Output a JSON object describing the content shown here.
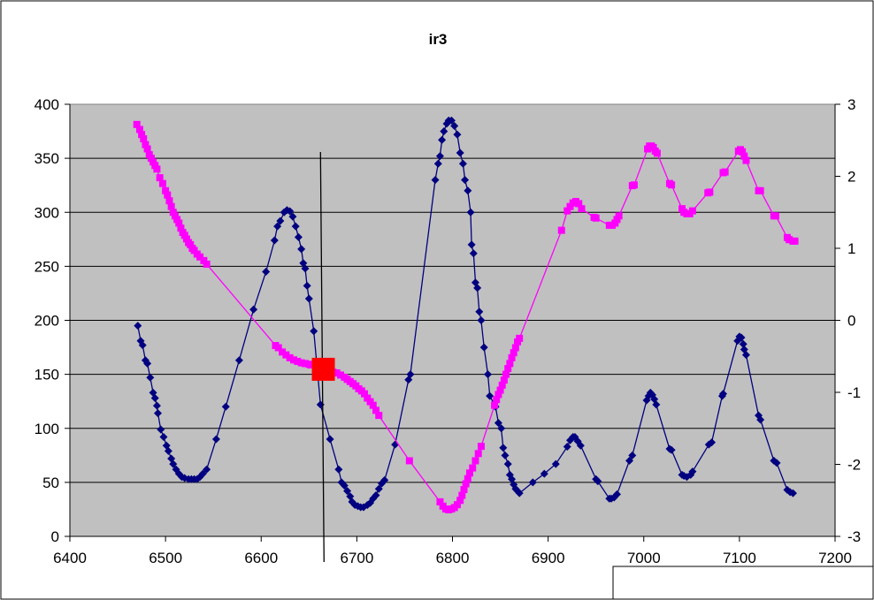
{
  "chart_data": {
    "type": "scatter",
    "title": "ir3",
    "xlabel": "",
    "ylabel": "",
    "xlim": [
      6400,
      7200
    ],
    "ylim": [
      0,
      400
    ],
    "y2lim": [
      -3,
      3
    ],
    "x_ticks": [
      "6400",
      "6500",
      "6600",
      "6700",
      "6800",
      "6900",
      "7000",
      "7100",
      "7200"
    ],
    "y_ticks": [
      "0",
      "50",
      "100",
      "150",
      "200",
      "250",
      "300",
      "350",
      "400"
    ],
    "y2_ticks": [
      "-3",
      "-2",
      "-1",
      "0",
      "1",
      "2",
      "3"
    ],
    "grid": true,
    "plot_background": "#c0c0c0",
    "series": [
      {
        "color": "#000080",
        "marker": "diamond",
        "axis": "left",
        "points": [
          [
            6471,
            195
          ],
          [
            6474,
            181
          ],
          [
            6476,
            177
          ],
          [
            6479,
            163
          ],
          [
            6481,
            160
          ],
          [
            6484,
            147
          ],
          [
            6487,
            133
          ],
          [
            6489,
            128
          ],
          [
            6491,
            121
          ],
          [
            6492,
            114
          ],
          [
            6495,
            99
          ],
          [
            6498,
            92
          ],
          [
            6501,
            84
          ],
          [
            6503,
            79
          ],
          [
            6506,
            72
          ],
          [
            6508,
            67
          ],
          [
            6511,
            62
          ],
          [
            6514,
            58
          ],
          [
            6517,
            55
          ],
          [
            6520,
            54
          ],
          [
            6524,
            53
          ],
          [
            6527,
            53
          ],
          [
            6530,
            53
          ],
          [
            6533,
            53
          ],
          [
            6536,
            55
          ],
          [
            6539,
            58
          ],
          [
            6543,
            62
          ],
          [
            6553,
            90
          ],
          [
            6563,
            120
          ],
          [
            6577,
            163
          ],
          [
            6592,
            210
          ],
          [
            6605,
            245
          ],
          [
            6614,
            274
          ],
          [
            6617,
            287
          ],
          [
            6620,
            292
          ],
          [
            6624,
            300
          ],
          [
            6627,
            302
          ],
          [
            6630,
            301
          ],
          [
            6633,
            296
          ],
          [
            6636,
            287
          ],
          [
            6639,
            277
          ],
          [
            6642,
            266
          ],
          [
            6644,
            253
          ],
          [
            6646,
            248
          ],
          [
            6648,
            232
          ],
          [
            6650,
            220
          ],
          [
            6655,
            190
          ],
          [
            6662,
            122
          ],
          [
            6672,
            90
          ],
          [
            6681,
            62
          ],
          [
            6684,
            50
          ],
          [
            6687,
            47
          ],
          [
            6690,
            42
          ],
          [
            6693,
            37
          ],
          [
            6695,
            32
          ],
          [
            6698,
            29
          ],
          [
            6701,
            28
          ],
          [
            6704,
            27
          ],
          [
            6707,
            27
          ],
          [
            6711,
            29
          ],
          [
            6714,
            31
          ],
          [
            6717,
            35
          ],
          [
            6720,
            38
          ],
          [
            6723,
            44
          ],
          [
            6726,
            49
          ],
          [
            6729,
            52
          ],
          [
            6740,
            85
          ],
          [
            6754,
            145
          ],
          [
            6756,
            150
          ],
          [
            6782,
            330
          ],
          [
            6785,
            345
          ],
          [
            6787,
            352
          ],
          [
            6789,
            367
          ],
          [
            6791,
            375
          ],
          [
            6794,
            382
          ],
          [
            6796,
            385
          ],
          [
            6799,
            385
          ],
          [
            6802,
            380
          ],
          [
            6805,
            372
          ],
          [
            6808,
            355
          ],
          [
            6811,
            345
          ],
          [
            6813,
            330
          ],
          [
            6816,
            320
          ],
          [
            6819,
            300
          ],
          [
            6820,
            270
          ],
          [
            6822,
            262
          ],
          [
            6824,
            235
          ],
          [
            6826,
            230
          ],
          [
            6828,
            208
          ],
          [
            6830,
            200
          ],
          [
            6833,
            175
          ],
          [
            6837,
            150
          ],
          [
            6839,
            130
          ],
          [
            6845,
            120
          ],
          [
            6848,
            105
          ],
          [
            6851,
            100
          ],
          [
            6853,
            82
          ],
          [
            6855,
            75
          ],
          [
            6858,
            67
          ],
          [
            6860,
            57
          ],
          [
            6862,
            53
          ],
          [
            6864,
            48
          ],
          [
            6866,
            44
          ],
          [
            6868,
            42
          ],
          [
            6870,
            40
          ],
          [
            6884,
            50
          ],
          [
            6896,
            58
          ],
          [
            6908,
            67
          ],
          [
            6920,
            83
          ],
          [
            6923,
            89
          ],
          [
            6926,
            92
          ],
          [
            6928,
            92
          ],
          [
            6931,
            88
          ],
          [
            6934,
            84
          ],
          [
            6950,
            53
          ],
          [
            6952,
            51
          ],
          [
            6964,
            35
          ],
          [
            6966,
            35
          ],
          [
            6969,
            36
          ],
          [
            6972,
            39
          ],
          [
            6985,
            70
          ],
          [
            6988,
            75
          ],
          [
            7003,
            126
          ],
          [
            7005,
            130
          ],
          [
            7007,
            133
          ],
          [
            7009,
            131
          ],
          [
            7011,
            127
          ],
          [
            7013,
            122
          ],
          [
            7027,
            81
          ],
          [
            7029,
            80
          ],
          [
            7040,
            57
          ],
          [
            7042,
            56
          ],
          [
            7045,
            55
          ],
          [
            7049,
            57
          ],
          [
            7051,
            60
          ],
          [
            7068,
            85
          ],
          [
            7071,
            87
          ],
          [
            7082,
            130
          ],
          [
            7083,
            132
          ],
          [
            7098,
            181
          ],
          [
            7100,
            185
          ],
          [
            7102,
            184
          ],
          [
            7104,
            178
          ],
          [
            7105,
            173
          ],
          [
            7107,
            168
          ],
          [
            7120,
            112
          ],
          [
            7122,
            108
          ],
          [
            7136,
            70
          ],
          [
            7139,
            68
          ],
          [
            7150,
            43
          ],
          [
            7153,
            41
          ],
          [
            7156,
            40
          ]
        ]
      },
      {
        "color": "#ff00ff",
        "marker": "square",
        "axis": "right",
        "points": [
          [
            6470,
            2.72
          ],
          [
            6473,
            2.65
          ],
          [
            6475,
            2.58
          ],
          [
            6477,
            2.52
          ],
          [
            6479,
            2.44
          ],
          [
            6481,
            2.38
          ],
          [
            6483,
            2.3
          ],
          [
            6485,
            2.25
          ],
          [
            6487,
            2.2
          ],
          [
            6489,
            2.15
          ],
          [
            6491,
            2.1
          ],
          [
            6494,
            1.98
          ],
          [
            6497,
            1.9
          ],
          [
            6500,
            1.8
          ],
          [
            6502,
            1.74
          ],
          [
            6504,
            1.66
          ],
          [
            6506,
            1.58
          ],
          [
            6508,
            1.5
          ],
          [
            6510,
            1.45
          ],
          [
            6512,
            1.4
          ],
          [
            6514,
            1.35
          ],
          [
            6516,
            1.28
          ],
          [
            6518,
            1.22
          ],
          [
            6520,
            1.18
          ],
          [
            6522,
            1.13
          ],
          [
            6524,
            1.08
          ],
          [
            6526,
            1.05
          ],
          [
            6528,
            1.0
          ],
          [
            6530,
            0.97
          ],
          [
            6533,
            0.92
          ],
          [
            6536,
            0.88
          ],
          [
            6540,
            0.83
          ],
          [
            6543,
            0.78
          ],
          [
            6615,
            -0.35
          ],
          [
            6618,
            -0.38
          ],
          [
            6622,
            -0.44
          ],
          [
            6626,
            -0.48
          ],
          [
            6630,
            -0.52
          ],
          [
            6634,
            -0.55
          ],
          [
            6638,
            -0.57
          ],
          [
            6642,
            -0.59
          ],
          [
            6646,
            -0.6
          ],
          [
            6650,
            -0.61
          ],
          [
            6652,
            -0.62
          ],
          [
            6675,
            -0.72
          ],
          [
            6679,
            -0.73
          ],
          [
            6683,
            -0.76
          ],
          [
            6687,
            -0.79
          ],
          [
            6690,
            -0.82
          ],
          [
            6693,
            -0.85
          ],
          [
            6696,
            -0.88
          ],
          [
            6699,
            -0.91
          ],
          [
            6702,
            -0.95
          ],
          [
            6705,
            -0.98
          ],
          [
            6708,
            -1.02
          ],
          [
            6711,
            -1.08
          ],
          [
            6714,
            -1.13
          ],
          [
            6717,
            -1.18
          ],
          [
            6720,
            -1.25
          ],
          [
            6723,
            -1.32
          ],
          [
            6755,
            -1.95
          ],
          [
            6787,
            -2.52
          ],
          [
            6790,
            -2.58
          ],
          [
            6793,
            -2.62
          ],
          [
            6796,
            -2.63
          ],
          [
            6799,
            -2.62
          ],
          [
            6802,
            -2.6
          ],
          [
            6805,
            -2.56
          ],
          [
            6808,
            -2.5
          ],
          [
            6810,
            -2.43
          ],
          [
            6812,
            -2.35
          ],
          [
            6814,
            -2.27
          ],
          [
            6816,
            -2.2
          ],
          [
            6818,
            -2.12
          ],
          [
            6821,
            -2.05
          ],
          [
            6824,
            -1.95
          ],
          [
            6827,
            -1.85
          ],
          [
            6830,
            -1.75
          ],
          [
            6844,
            -1.18
          ],
          [
            6846,
            -1.1
          ],
          [
            6848,
            -1.03
          ],
          [
            6850,
            -0.97
          ],
          [
            6852,
            -0.9
          ],
          [
            6854,
            -0.83
          ],
          [
            6856,
            -0.75
          ],
          [
            6858,
            -0.67
          ],
          [
            6860,
            -0.6
          ],
          [
            6862,
            -0.52
          ],
          [
            6864,
            -0.45
          ],
          [
            6866,
            -0.38
          ],
          [
            6868,
            -0.3
          ],
          [
            6870,
            -0.25
          ],
          [
            6914,
            1.25
          ],
          [
            6920,
            1.52
          ],
          [
            6923,
            1.58
          ],
          [
            6926,
            1.63
          ],
          [
            6929,
            1.65
          ],
          [
            6932,
            1.62
          ],
          [
            6935,
            1.55
          ],
          [
            6948,
            1.43
          ],
          [
            6950,
            1.42
          ],
          [
            6964,
            1.32
          ],
          [
            6967,
            1.32
          ],
          [
            6970,
            1.35
          ],
          [
            6972,
            1.4
          ],
          [
            6974,
            1.45
          ],
          [
            6988,
            1.87
          ],
          [
            6990,
            1.88
          ],
          [
            7004,
            2.38
          ],
          [
            7006,
            2.42
          ],
          [
            7008,
            2.42
          ],
          [
            7010,
            2.4
          ],
          [
            7012,
            2.35
          ],
          [
            7014,
            2.32
          ],
          [
            7027,
            1.9
          ],
          [
            7029,
            1.88
          ],
          [
            7040,
            1.55
          ],
          [
            7042,
            1.5
          ],
          [
            7045,
            1.48
          ],
          [
            7048,
            1.48
          ],
          [
            7051,
            1.52
          ],
          [
            7067,
            1.77
          ],
          [
            7069,
            1.78
          ],
          [
            7083,
            2.05
          ],
          [
            7085,
            2.06
          ],
          [
            7099,
            2.35
          ],
          [
            7101,
            2.37
          ],
          [
            7103,
            2.34
          ],
          [
            7105,
            2.28
          ],
          [
            7107,
            2.22
          ],
          [
            7120,
            1.8
          ],
          [
            7122,
            1.8
          ],
          [
            7136,
            1.45
          ],
          [
            7138,
            1.45
          ],
          [
            7150,
            1.15
          ],
          [
            7152,
            1.12
          ],
          [
            7156,
            1.1
          ],
          [
            7158,
            1.1
          ]
        ]
      }
    ],
    "annotations": {
      "highlight_point": {
        "x": 6665,
        "y2": -0.68,
        "color": "#ff0000"
      },
      "vertical_line_x": 6662
    }
  }
}
